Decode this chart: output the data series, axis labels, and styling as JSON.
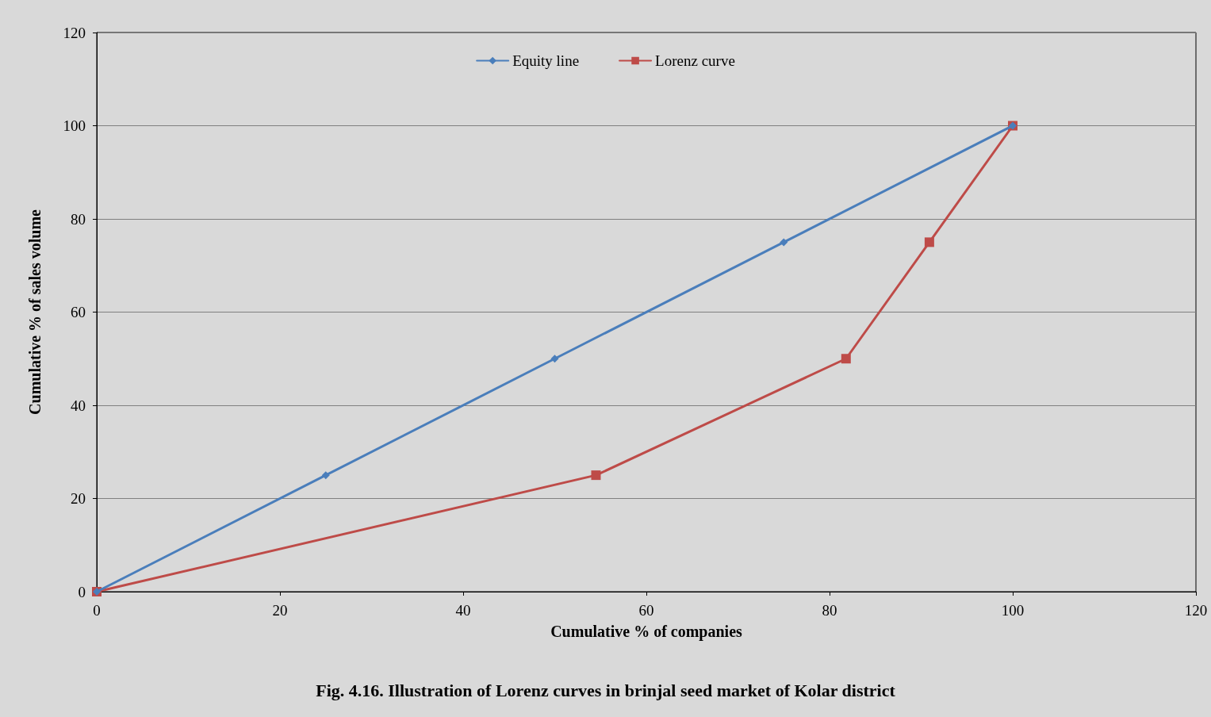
{
  "chart_data": {
    "type": "line",
    "title": "Fig. 4.16. Illustration of Lorenz curves in brinjal seed market of Kolar district",
    "xlabel": "Cumulative % of companies",
    "ylabel": "Cumulative % of sales volume",
    "series": [
      {
        "name": "Equity line",
        "color": "#4a7ebb",
        "marker": "diamond",
        "x": [
          0,
          25,
          50,
          75,
          100
        ],
        "values": [
          0,
          25,
          50,
          75,
          100
        ]
      },
      {
        "name": "Lorenz curve",
        "color": "#be4b48",
        "marker": "square",
        "x": [
          0,
          54.5,
          81.8,
          90.9,
          100
        ],
        "values": [
          0,
          25,
          50,
          75,
          100
        ]
      }
    ],
    "xlim": [
      0,
      120
    ],
    "xticks": [
      0,
      20,
      40,
      60,
      80,
      100,
      120
    ],
    "ylim": [
      0,
      120
    ],
    "yticks": [
      0,
      20,
      40,
      60,
      80,
      100,
      120
    ],
    "grid": "y",
    "legend": "top",
    "line_style": "solid"
  }
}
